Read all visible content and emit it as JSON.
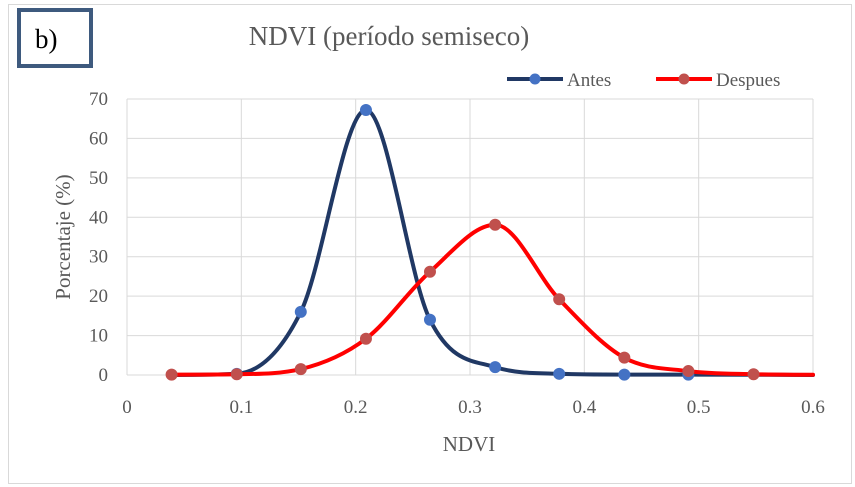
{
  "panel_label": "b)",
  "chart_data": {
    "type": "line",
    "title": "NDVI (período semiseco)",
    "xlabel": "NDVI",
    "ylabel": "Porcentaje (%)",
    "xlim": [
      0,
      0.6
    ],
    "ylim": [
      0,
      70
    ],
    "xticks": [
      0,
      0.1,
      0.2,
      0.3,
      0.4,
      0.5,
      0.6
    ],
    "yticks": [
      0,
      10,
      20,
      30,
      40,
      50,
      60,
      70
    ],
    "grid": true,
    "legend_position": "top-right",
    "series": [
      {
        "name": "Antes",
        "color": "#203864",
        "marker_color": "#4472c4",
        "x": [
          0.096,
          0.152,
          0.209,
          0.265,
          0.322,
          0.378,
          0.435,
          0.491
        ],
        "y": [
          0.3,
          16,
          67.2,
          14,
          2,
          0.3,
          0.1,
          0.1
        ]
      },
      {
        "name": "Despues",
        "color": "#ff0000",
        "marker_color": "#c0504d",
        "x": [
          0.039,
          0.096,
          0.152,
          0.209,
          0.265,
          0.322,
          0.378,
          0.435,
          0.491,
          0.548
        ],
        "y": [
          0.1,
          0.2,
          1.5,
          9.2,
          26.2,
          38.1,
          19.2,
          4.4,
          1.0,
          0.2
        ]
      }
    ]
  }
}
